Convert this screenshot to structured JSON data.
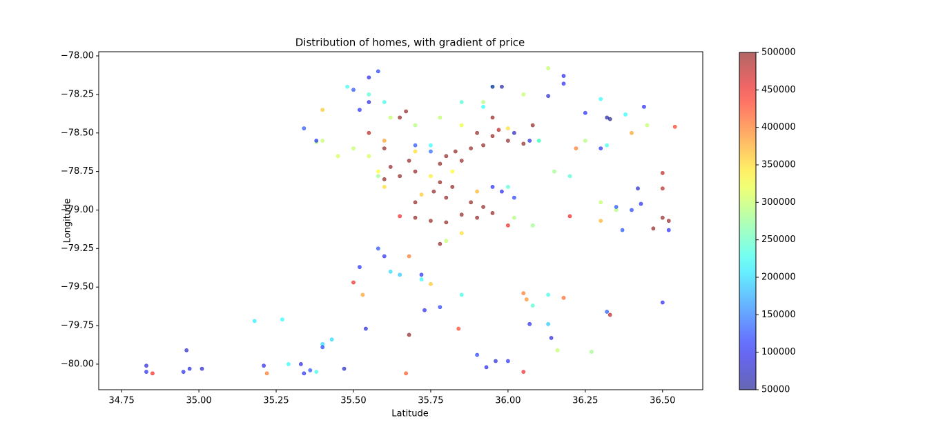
{
  "chart_data": {
    "type": "scatter",
    "title": "Distribution of homes, with gradient of price",
    "x_label": "Latitude",
    "y_label": "Longitude",
    "colormap": "jet",
    "alpha": 0.6,
    "xlim": [
      34.676,
      36.63
    ],
    "ylim": [
      -80.166,
      -77.973
    ],
    "xticks": [
      34.75,
      {
        "value": 35,
        "label": "35.00"
      },
      35.25,
      {
        "value": 35.5,
        "label": "35.50"
      },
      35.75,
      {
        "value": 36,
        "label": "36.00"
      },
      36.25,
      {
        "value": 36.5,
        "label": "36.50"
      }
    ],
    "yticks": [
      {
        "value": -80,
        "label": "−80.00"
      },
      {
        "value": -79.75,
        "label": "−79.75"
      },
      {
        "value": -79.5,
        "label": "−79.50"
      },
      {
        "value": -79.25,
        "label": "−79.25"
      },
      {
        "value": -79,
        "label": "−79.00"
      },
      {
        "value": -78.75,
        "label": "−78.75"
      },
      {
        "value": -78.5,
        "label": "−78.50"
      },
      {
        "value": -78.25,
        "label": "−78.25"
      },
      {
        "value": -78,
        "label": "−78.00"
      }
    ],
    "clim": [
      50000,
      500000
    ],
    "cticks": [
      50000,
      100000,
      150000,
      200000,
      250000,
      300000,
      350000,
      400000,
      450000,
      500000
    ],
    "x": [
      35.8,
      35.83,
      35.88,
      35.92,
      35.95,
      36.0,
      35.97,
      35.9,
      35.85,
      35.78,
      35.7,
      35.65,
      35.62,
      35.68,
      35.6,
      35.78,
      35.82,
      35.76,
      35.8,
      35.7,
      35.88,
      35.92,
      35.85,
      35.9,
      35.95,
      35.75,
      35.8,
      35.7,
      35.78,
      35.65,
      35.67,
      35.6,
      35.55,
      36.05,
      36.08,
      35.95,
      36.0,
      36.5,
      36.52,
      36.47,
      36.54,
      36.5,
      36.5,
      35.5,
      35.68,
      36.33,
      35.84,
      36.05,
      36.2,
      35.65,
      35.6,
      35.7,
      35.75,
      35.72,
      35.82,
      35.9,
      35.6,
      35.58,
      35.85,
      35.68,
      35.4,
      35.75,
      35.53,
      36.05,
      36.18,
      36.06,
      35.22,
      35.67,
      36.0,
      36.3,
      36.4,
      36.22,
      35.4,
      35.38,
      35.5,
      35.55,
      35.58,
      35.62,
      35.7,
      35.78,
      35.85,
      35.92,
      36.05,
      36.13,
      36.1,
      36.15,
      36.02,
      36.08,
      36.27,
      36.16,
      36.3,
      36.35,
      36.25,
      36.45,
      35.8,
      35.45,
      35.48,
      35.55,
      35.6,
      35.85,
      35.95,
      35.92,
      36.1,
      36.2,
      36.3,
      36.32,
      36.38,
      36.0,
      35.62,
      35.72,
      35.85,
      36.08,
      36.13,
      35.18,
      35.27,
      35.4,
      35.43,
      35.38,
      35.29,
      36.13,
      35.75,
      35.65,
      35.58,
      35.55,
      35.5,
      35.55,
      35.52,
      35.95,
      35.98,
      36.02,
      36.07,
      35.98,
      35.95,
      36.02,
      36.32,
      36.33,
      36.35,
      36.4,
      36.43,
      36.3,
      35.34,
      35.38,
      35.58,
      35.6,
      35.72,
      35.73,
      35.78,
      35.54,
      35.47,
      34.83,
      34.83,
      34.96,
      34.97,
      35.01,
      34.95,
      35.33,
      35.34,
      35.36,
      35.21,
      35.9,
      35.93,
      35.96,
      36.0,
      36.07,
      36.14,
      36.32,
      36.5,
      36.52,
      36.37,
      35.4,
      35.52,
      36.18,
      36.25,
      36.44,
      36.42,
      36.13,
      35.75,
      35.7,
      36.18,
      34.85
    ],
    "y": [
      -78.65,
      -78.62,
      -78.6,
      -78.58,
      -78.52,
      -78.55,
      -78.48,
      -78.5,
      -78.68,
      -78.7,
      -78.75,
      -78.78,
      -78.72,
      -78.68,
      -78.8,
      -78.82,
      -78.85,
      -78.88,
      -78.92,
      -78.95,
      -78.95,
      -78.98,
      -79.03,
      -79.05,
      -79.02,
      -79.07,
      -79.08,
      -79.05,
      -79.22,
      -78.4,
      -78.36,
      -78.6,
      -78.5,
      -78.57,
      -78.45,
      -78.4,
      -79.1,
      -79.05,
      -79.07,
      -79.12,
      -78.46,
      -78.76,
      -78.86,
      -79.47,
      -79.81,
      -79.68,
      -79.77,
      -80.05,
      -79.04,
      -79.04,
      -78.55,
      -78.62,
      -78.78,
      -78.9,
      -78.75,
      -78.88,
      -78.85,
      -78.75,
      -79.15,
      -79.3,
      -78.35,
      -79.48,
      -79.55,
      -79.54,
      -79.57,
      -79.58,
      -80.06,
      -80.06,
      -78.47,
      -79.07,
      -78.5,
      -78.6,
      -78.55,
      -78.56,
      -78.6,
      -78.65,
      -78.78,
      -78.4,
      -78.45,
      -78.4,
      -78.45,
      -78.3,
      -78.25,
      -78.08,
      -78.55,
      -78.75,
      -79.05,
      -79.1,
      -79.92,
      -79.91,
      -78.95,
      -79.0,
      -78.55,
      -78.45,
      -79.2,
      -78.65,
      -78.2,
      -78.25,
      -78.3,
      -78.3,
      -78.2,
      -78.33,
      -78.55,
      -78.78,
      -78.28,
      -78.58,
      -78.38,
      -78.85,
      -79.4,
      -79.45,
      -79.55,
      -79.62,
      -79.55,
      -79.72,
      -79.71,
      -79.87,
      -79.84,
      -80.05,
      -80.0,
      -79.74,
      -78.58,
      -79.42,
      -78.1,
      -78.14,
      -78.22,
      -78.3,
      -78.35,
      -78.2,
      -78.2,
      -78.5,
      -78.55,
      -78.88,
      -78.85,
      -78.92,
      -78.4,
      -78.41,
      -78.98,
      -79.0,
      -78.96,
      -78.6,
      -78.47,
      -78.55,
      -79.25,
      -79.3,
      -79.42,
      -79.65,
      -79.63,
      -79.77,
      -80.03,
      -80.01,
      -80.05,
      -79.91,
      -80.03,
      -80.03,
      -80.05,
      -80.0,
      -80.06,
      -80.04,
      -80.01,
      -79.94,
      -80.02,
      -79.98,
      -79.98,
      -79.74,
      -79.83,
      -79.66,
      -79.6,
      -79.13,
      -79.13,
      -79.89,
      -79.37,
      -78.13,
      -78.37,
      -78.33,
      -78.86,
      -78.26,
      -78.62,
      -78.58,
      -78.18,
      -80.06
    ],
    "price": [
      500000,
      500000,
      500000,
      500000,
      500000,
      500000,
      480000,
      500000,
      500000,
      500000,
      500000,
      500000,
      500000,
      500000,
      500000,
      500000,
      500000,
      500000,
      500000,
      500000,
      500000,
      500000,
      500000,
      500000,
      500000,
      500000,
      500000,
      500000,
      500000,
      500000,
      500000,
      500000,
      480000,
      500000,
      500000,
      500000,
      450000,
      500000,
      500000,
      500000,
      430000,
      480000,
      480000,
      450000,
      500000,
      480000,
      430000,
      450000,
      450000,
      450000,
      380000,
      350000,
      340000,
      360000,
      330000,
      370000,
      350000,
      330000,
      350000,
      400000,
      360000,
      360000,
      380000,
      400000,
      410000,
      390000,
      400000,
      420000,
      350000,
      370000,
      380000,
      400000,
      300000,
      290000,
      300000,
      310000,
      280000,
      300000,
      290000,
      300000,
      320000,
      290000,
      300000,
      300000,
      290000,
      280000,
      290000,
      280000,
      280000,
      300000,
      300000,
      290000,
      290000,
      300000,
      300000,
      310000,
      230000,
      240000,
      230000,
      240000,
      250000,
      220000,
      230000,
      240000,
      220000,
      230000,
      220000,
      240000,
      200000,
      220000,
      230000,
      240000,
      230000,
      210000,
      220000,
      200000,
      200000,
      230000,
      220000,
      190000,
      220000,
      190000,
      120000,
      100000,
      130000,
      90000,
      110000,
      60000,
      60000,
      70000,
      90000,
      100000,
      110000,
      120000,
      60000,
      50000,
      130000,
      120000,
      110000,
      110000,
      130000,
      110000,
      130000,
      110000,
      110000,
      100000,
      120000,
      90000,
      80000,
      90000,
      100000,
      80000,
      90000,
      80000,
      100000,
      90000,
      110000,
      130000,
      100000,
      120000,
      100000,
      90000,
      110000,
      100000,
      90000,
      130000,
      100000,
      110000,
      130000,
      120000,
      110000,
      100000,
      110000,
      100000,
      80000,
      80000,
      140000,
      130000,
      110000,
      450000
    ]
  }
}
